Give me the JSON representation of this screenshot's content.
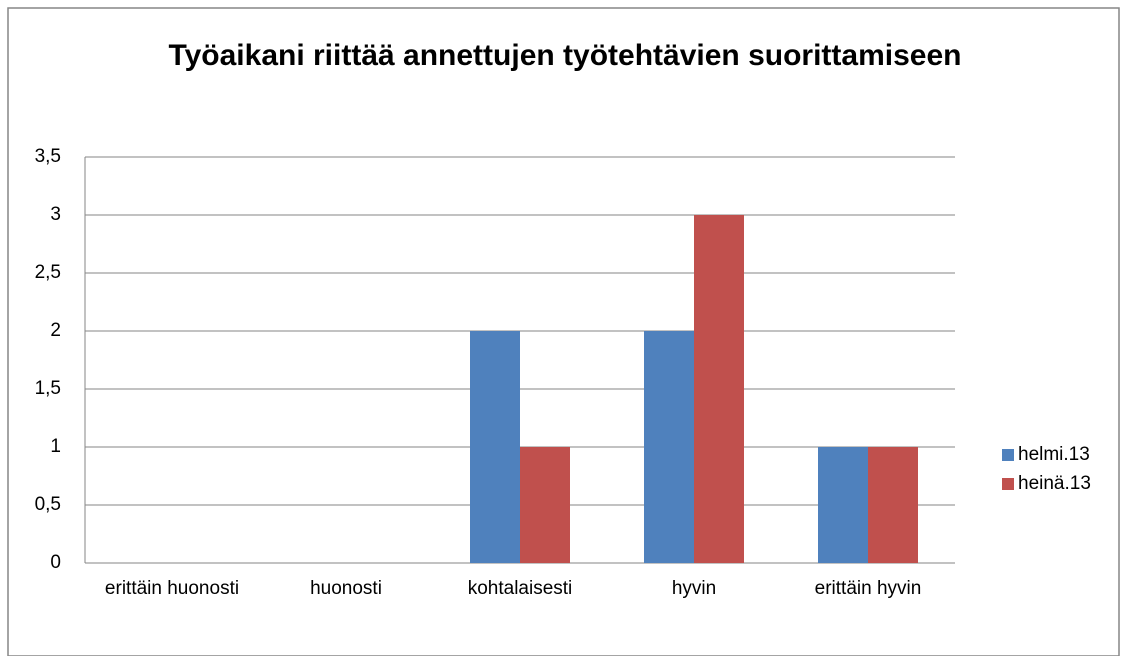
{
  "chart_data": {
    "type": "bar",
    "title": "Työaikani riittää annettujen työtehtävien suorittamiseen",
    "categories": [
      "erittäin huonosti",
      "huonosti",
      "kohtalaisesti",
      "hyvin",
      "erittäin hyvin"
    ],
    "series": [
      {
        "name": "helmi.13",
        "color": "#4f81bd",
        "values": [
          0,
          0,
          2,
          2,
          1
        ]
      },
      {
        "name": "heinä.13",
        "color": "#c0504d",
        "values": [
          0,
          0,
          1,
          3,
          1
        ]
      }
    ],
    "ylim": [
      0,
      3.5
    ],
    "yticks": [
      0,
      {
        "value": 0.5,
        "label": "0,5"
      },
      1,
      {
        "value": 1.5,
        "label": "1,5"
      },
      2,
      {
        "value": 2.5,
        "label": "2,5"
      },
      3,
      {
        "value": 3.5,
        "label": "3,5"
      }
    ],
    "grid": true,
    "legend": "right"
  }
}
